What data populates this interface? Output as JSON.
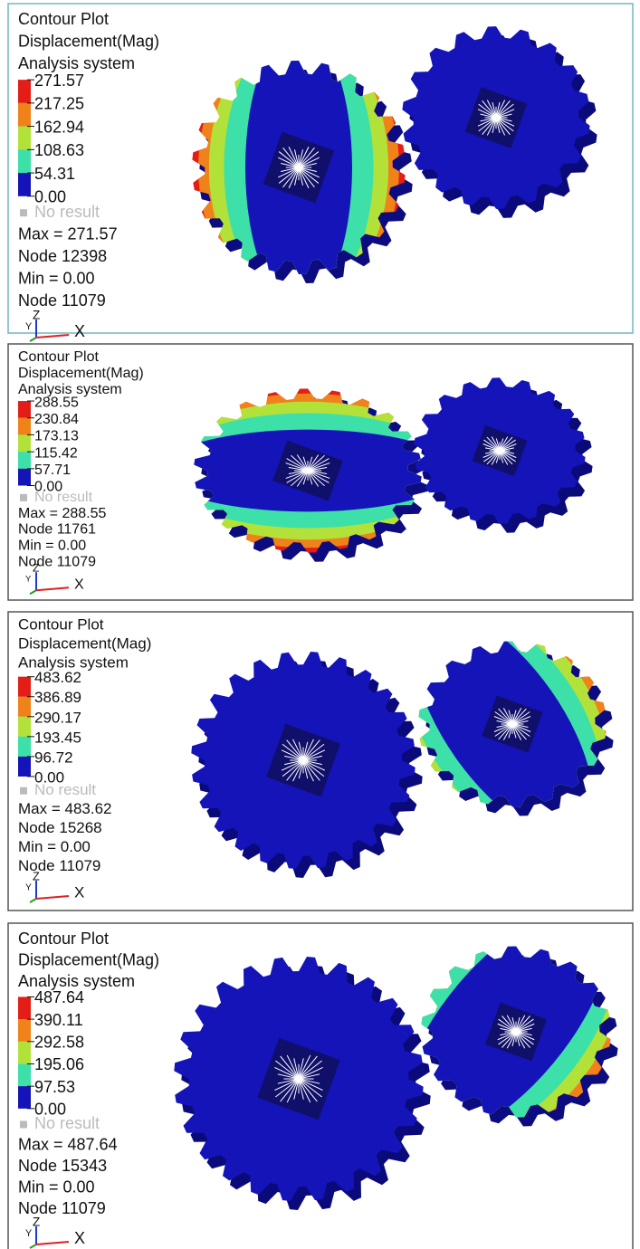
{
  "panels": [
    {
      "title": "Contour Plot",
      "result": "Displacement(Mag)",
      "system": "Analysis system",
      "legend": [
        "271.57",
        "217.25",
        "162.94",
        "108.63",
        "54.31",
        "0.00"
      ],
      "no_result": "No result",
      "max": "Max = 271.57",
      "max_node": "Node 12398",
      "min": "Min = 0.00",
      "min_node": "Node 11079",
      "axes": {
        "y": "Y",
        "z": "Z",
        "x": "X"
      }
    },
    {
      "title": "Contour Plot",
      "result": "Displacement(Mag)",
      "system": "Analysis system",
      "legend": [
        "288.55",
        "230.84",
        "173.13",
        "115.42",
        "57.71",
        "0.00"
      ],
      "no_result": "No result",
      "max": "Max = 288.55",
      "max_node": "Node 11761",
      "min": "Min = 0.00",
      "min_node": "Node 11079",
      "axes": {
        "y": "Y",
        "z": "Z",
        "x": "X"
      }
    },
    {
      "title": "Contour Plot",
      "result": "Displacement(Mag)",
      "system": "Analysis system",
      "legend": [
        "483.62",
        "386.89",
        "290.17",
        "193.45",
        "96.72",
        "0.00"
      ],
      "no_result": "No result",
      "max": "Max = 483.62",
      "max_node": "Node 15268",
      "min": "Min = 0.00",
      "min_node": "Node 11079",
      "axes": {
        "y": "Y",
        "z": "Z",
        "x": "X"
      }
    },
    {
      "title": "Contour Plot",
      "result": "Displacement(Mag)",
      "system": "Analysis system",
      "legend": [
        "487.64",
        "390.11",
        "292.58",
        "195.06",
        "97.53",
        "0.00"
      ],
      "no_result": "No result",
      "max": "Max = 487.64",
      "max_node": "Node 15343",
      "min": "Min = 0.00",
      "min_node": "Node 11079",
      "axes": {
        "y": "Y",
        "z": "Z",
        "x": "X"
      }
    }
  ]
}
